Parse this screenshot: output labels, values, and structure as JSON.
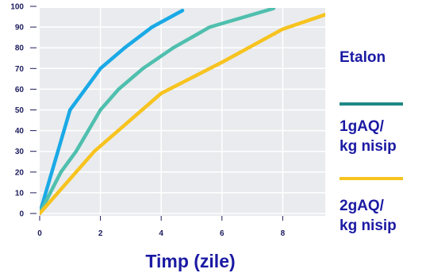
{
  "chart_data": {
    "type": "line",
    "title": "",
    "xlabel": "Timp (zile)",
    "ylabel": "",
    "xlim": [
      0,
      9.4
    ],
    "ylim": [
      0,
      100
    ],
    "xticks": [
      0,
      2,
      4,
      6,
      8
    ],
    "yticks": [
      0,
      10,
      20,
      30,
      40,
      50,
      60,
      70,
      80,
      90,
      100
    ],
    "xtick_labels": [
      "0",
      "2",
      "4",
      "6",
      "8"
    ],
    "ytick_labels": [
      "0",
      "10",
      "20",
      "30",
      "40",
      "50",
      "60",
      "70",
      "80",
      "90",
      "100"
    ],
    "grid": true,
    "series": [
      {
        "name": "Etalon",
        "color": "#1aa9e6",
        "x": [
          0,
          1,
          2,
          2.8,
          3.7,
          4.7
        ],
        "y": [
          0,
          50,
          70,
          80,
          90,
          98
        ]
      },
      {
        "name": "1gAQ/\nkg nisip",
        "color": "#4fbfae",
        "x": [
          0,
          0.7,
          1.2,
          1.6,
          2,
          2.6,
          3.4,
          4.4,
          5.6,
          7.7
        ],
        "y": [
          0,
          20,
          30,
          40,
          50,
          60,
          70,
          80,
          90,
          99
        ]
      },
      {
        "name": "2gAQ/\nkg nisip",
        "color": "#f7c31e",
        "x": [
          0,
          1.8,
          4,
          6,
          8,
          9.4
        ],
        "y": [
          0,
          30,
          58,
          73,
          89,
          96
        ]
      }
    ],
    "legend_position": "right"
  },
  "legend": {
    "items": [
      {
        "label": "Etalon",
        "line_color": ""
      },
      {
        "label": "1gAQ/\nkg nisip",
        "line_color": "#1e8a86"
      },
      {
        "label": "2gAQ/\nkg nisip",
        "line_color": "#f7c31e"
      }
    ]
  }
}
